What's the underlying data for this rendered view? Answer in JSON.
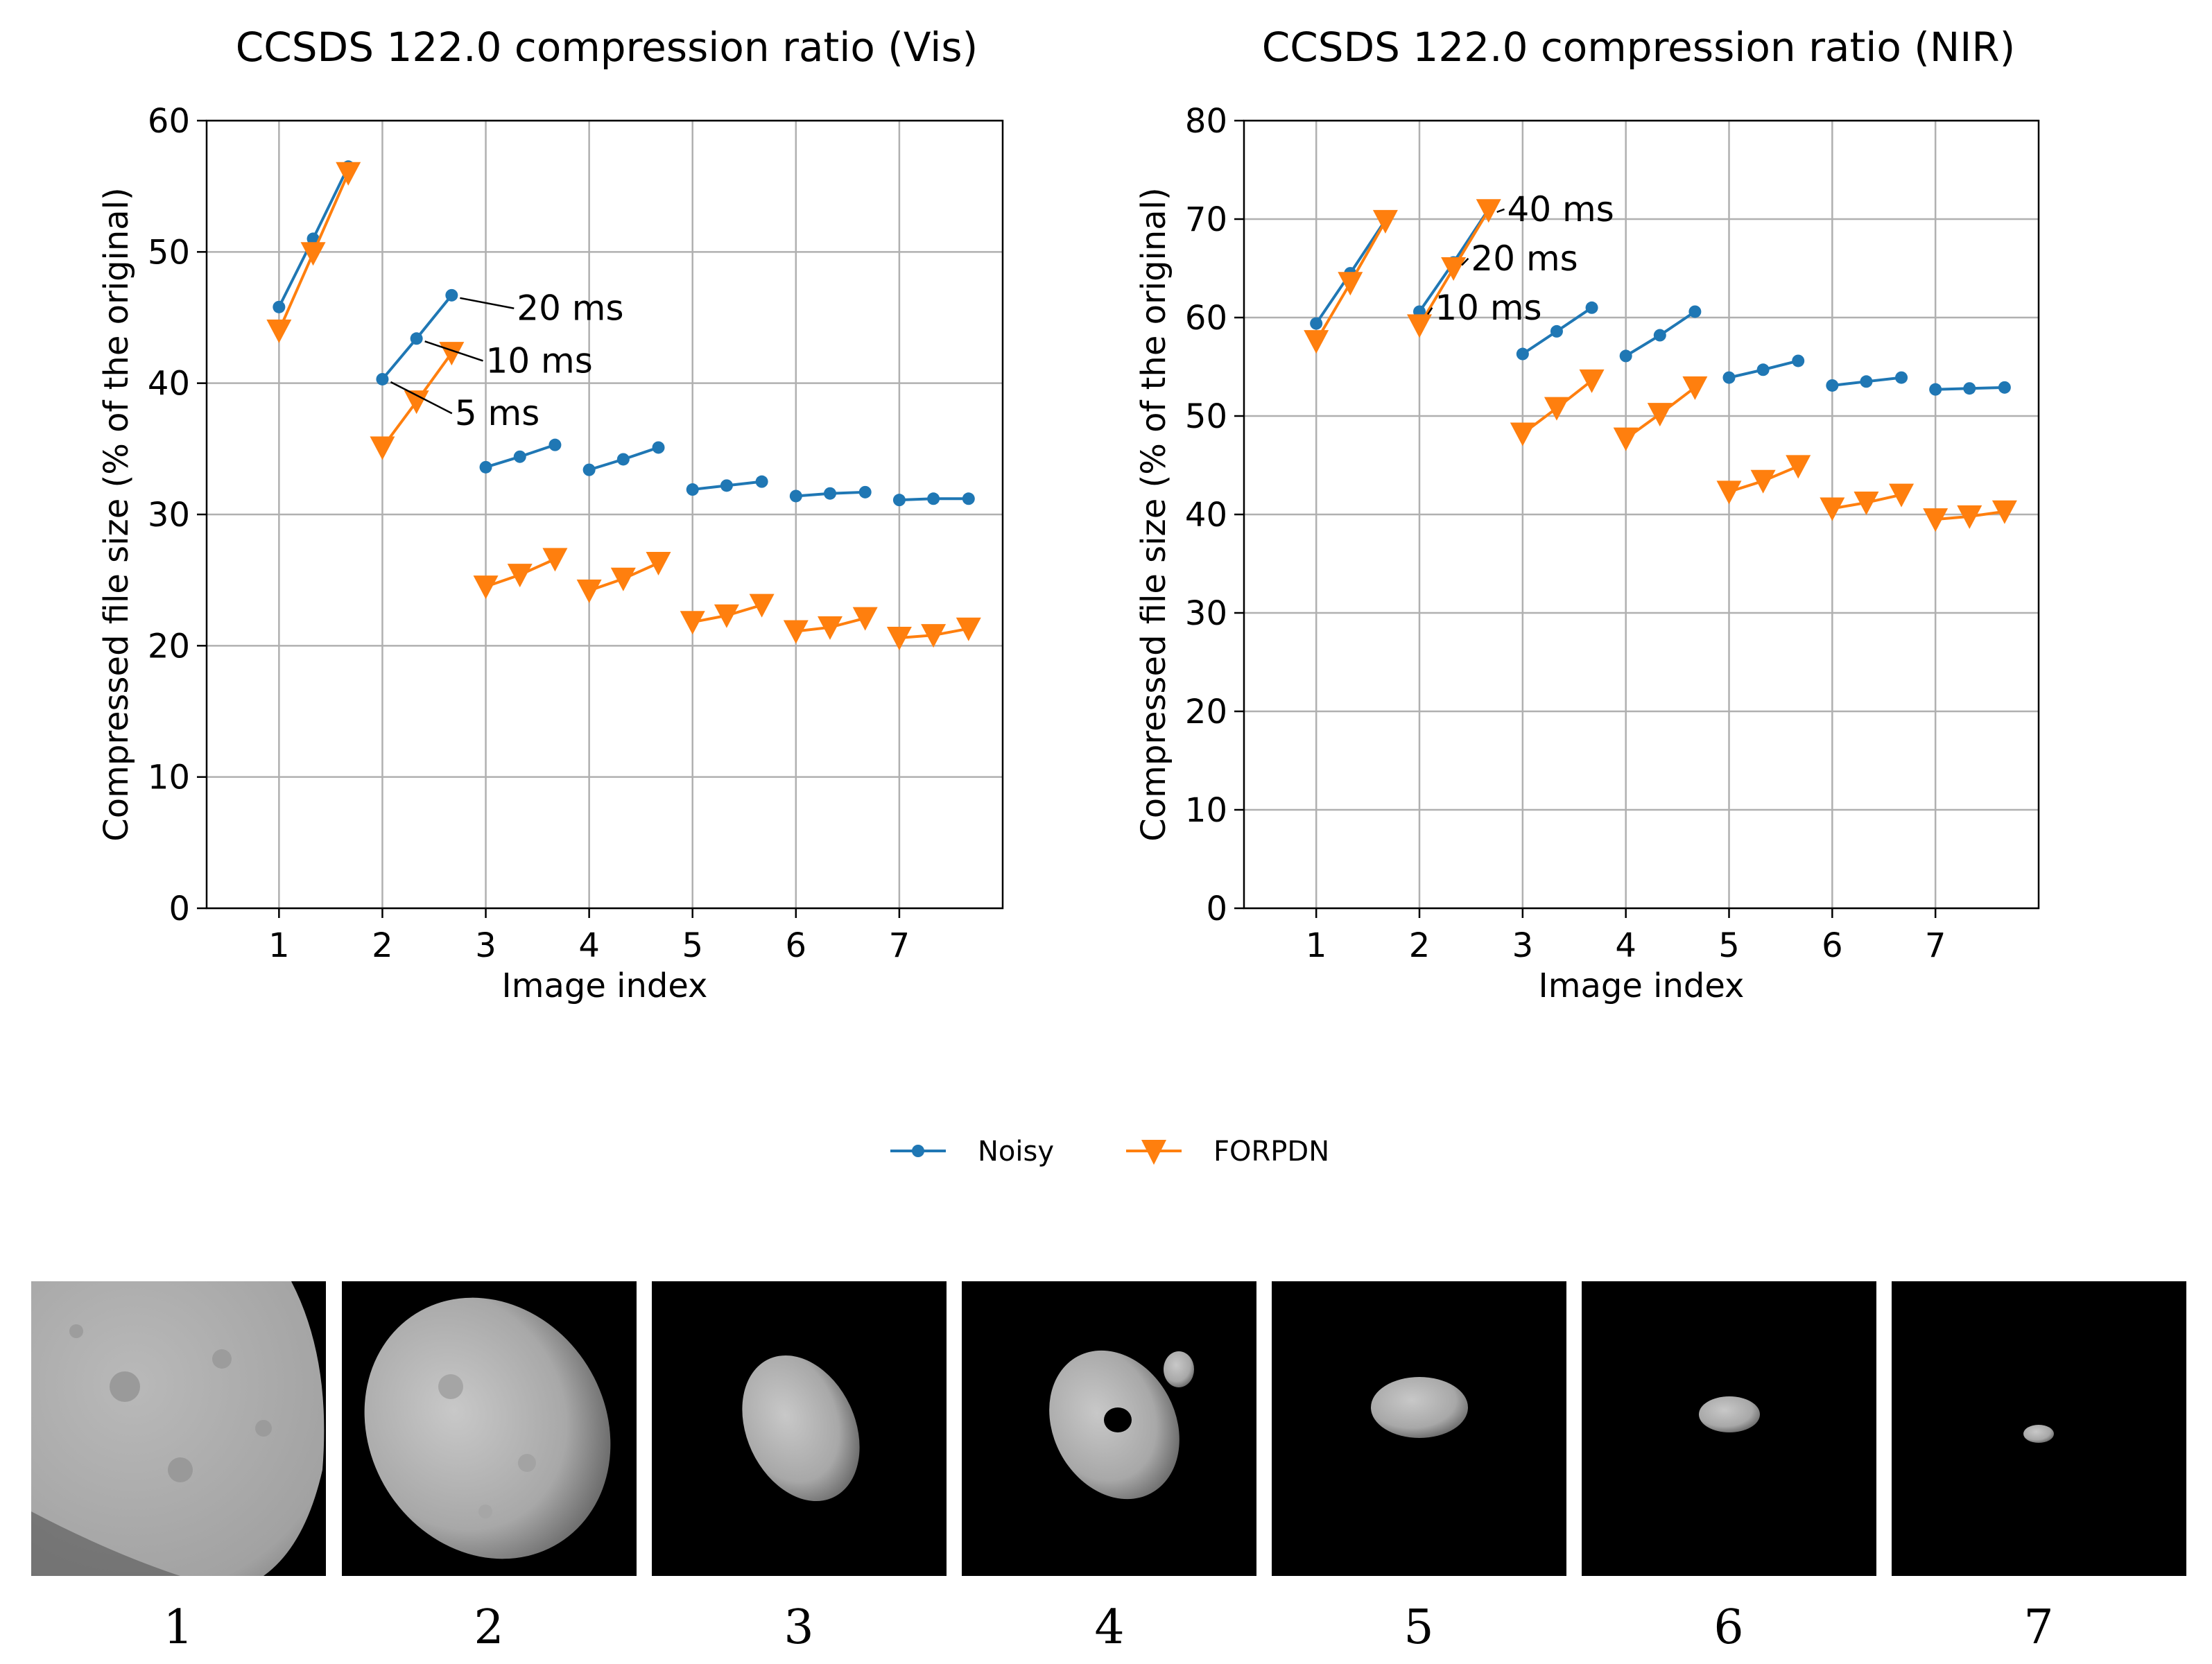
{
  "legend": {
    "entries": [
      {
        "label": "Noisy",
        "color": "#1f77b4",
        "marker": "dot"
      },
      {
        "label": "FORPDN",
        "color": "#ff7f0e",
        "marker": "triangle-down"
      }
    ]
  },
  "chart_data": [
    {
      "type": "line",
      "title": "CCSDS 122.0 compression ratio (Vis)",
      "xlabel": "Image index",
      "ylabel": "Compressed file size (% of the original)",
      "xlim": [
        0.3,
        8.0
      ],
      "ylim": [
        0,
        60
      ],
      "xticks": [
        1,
        2,
        3,
        4,
        5,
        6,
        7
      ],
      "yticks": [
        0,
        10,
        20,
        30,
        40,
        50,
        60
      ],
      "grid": true,
      "exposure_offsets": [
        0,
        0.33,
        0.67
      ],
      "series": [
        {
          "name": "Noisy",
          "color": "#1f77b4",
          "marker": "dot",
          "groups": [
            [
              45.8,
              51.0,
              56.5
            ],
            [
              40.3,
              43.4,
              46.7
            ],
            [
              33.6,
              34.4,
              35.3
            ],
            [
              33.4,
              34.2,
              35.1
            ],
            [
              31.9,
              32.2,
              32.5
            ],
            [
              31.4,
              31.6,
              31.7
            ],
            [
              31.1,
              31.2,
              31.2
            ]
          ]
        },
        {
          "name": "FORPDN",
          "color": "#ff7f0e",
          "marker": "triangle-down",
          "groups": [
            [
              44.0,
              49.9,
              56.0
            ],
            [
              35.1,
              38.6,
              42.3
            ],
            [
              24.5,
              25.4,
              26.6
            ],
            [
              24.2,
              25.1,
              26.3
            ],
            [
              21.8,
              22.3,
              23.1
            ],
            [
              21.1,
              21.4,
              22.1
            ],
            [
              20.6,
              20.8,
              21.3
            ]
          ]
        }
      ],
      "annotations": [
        {
          "text": "20 ms",
          "x": 2.67,
          "y": 46.7,
          "text_x": 3.3,
          "text_y": 45.7
        },
        {
          "text": "10 ms",
          "x": 2.33,
          "y": 43.4,
          "text_x": 3.0,
          "text_y": 41.7
        },
        {
          "text": "5 ms",
          "x": 2.0,
          "y": 40.3,
          "text_x": 2.7,
          "text_y": 37.7
        }
      ]
    },
    {
      "type": "line",
      "title": "CCSDS 122.0 compression ratio (NIR)",
      "xlabel": "Image index",
      "ylabel": "Compressed file size (% of the original)",
      "xlim": [
        0.3,
        8.0
      ],
      "ylim": [
        0,
        80
      ],
      "xticks": [
        1,
        2,
        3,
        4,
        5,
        6,
        7
      ],
      "yticks": [
        0,
        10,
        20,
        30,
        40,
        50,
        60,
        70,
        80
      ],
      "grid": true,
      "exposure_offsets": [
        0,
        0.33,
        0.67
      ],
      "series": [
        {
          "name": "Noisy",
          "color": "#1f77b4",
          "marker": "dot",
          "groups": [
            [
              59.4,
              64.5,
              69.9
            ],
            [
              60.6,
              65.6,
              71.0
            ],
            [
              56.3,
              58.6,
              61.0
            ],
            [
              56.1,
              58.2,
              60.6
            ],
            [
              53.9,
              54.7,
              55.6
            ],
            [
              53.1,
              53.5,
              53.9
            ],
            [
              52.7,
              52.8,
              52.9
            ]
          ]
        },
        {
          "name": "FORPDN",
          "color": "#ff7f0e",
          "marker": "triangle-down",
          "groups": [
            [
              57.6,
              63.5,
              69.8
            ],
            [
              59.2,
              65.0,
              70.9
            ],
            [
              48.2,
              50.8,
              53.6
            ],
            [
              47.7,
              50.2,
              52.9
            ],
            [
              42.3,
              43.4,
              44.9
            ],
            [
              40.6,
              41.2,
              42.0
            ],
            [
              39.5,
              39.8,
              40.3
            ]
          ]
        }
      ],
      "annotations": [
        {
          "text": "40 ms",
          "x": 2.67,
          "y": 71.0,
          "text_x": 2.85,
          "text_y": 71.0
        },
        {
          "text": "20 ms",
          "x": 2.33,
          "y": 65.6,
          "text_x": 2.5,
          "text_y": 66.0
        },
        {
          "text": "10 ms",
          "x": 2.0,
          "y": 60.6,
          "text_x": 2.15,
          "text_y": 61.0
        }
      ]
    }
  ],
  "thumbnails": [
    {
      "caption": "1",
      "shape": "closeup"
    },
    {
      "caption": "2",
      "shape": "large"
    },
    {
      "caption": "3",
      "shape": "medium"
    },
    {
      "caption": "4",
      "shape": "holed"
    },
    {
      "caption": "5",
      "shape": "small"
    },
    {
      "caption": "6",
      "shape": "smaller"
    },
    {
      "caption": "7",
      "shape": "tiny"
    }
  ]
}
